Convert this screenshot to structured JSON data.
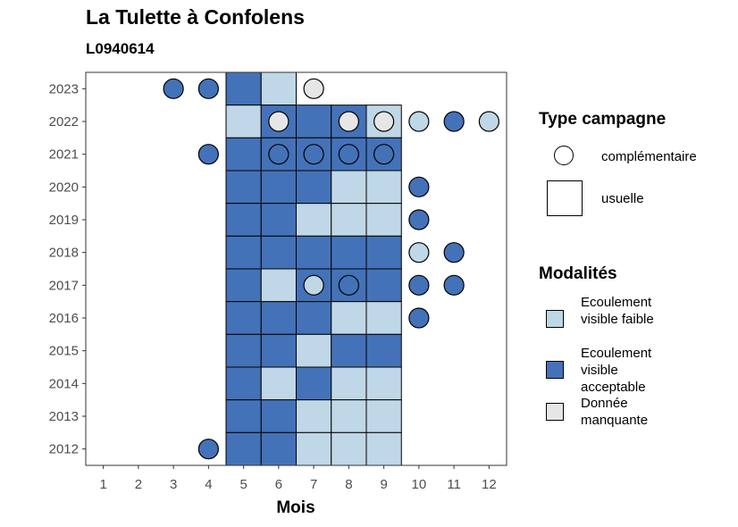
{
  "title": "La Tulette à Confolens",
  "subtitle": "L0940614",
  "chart_data": {
    "type": "heatmap",
    "xlabel": "Mois",
    "ylabel": "",
    "x_ticks": [
      1,
      2,
      3,
      4,
      5,
      6,
      7,
      8,
      9,
      10,
      11,
      12
    ],
    "y_ticks": [
      2012,
      2013,
      2014,
      2015,
      2016,
      2017,
      2018,
      2019,
      2020,
      2021,
      2022,
      2023
    ],
    "xlim": [
      0.5,
      12.5
    ],
    "ylim": [
      2011.5,
      2023.5
    ],
    "colors": {
      "Ecoulement visible faible": "#bfd7e6",
      "Ecoulement visible acceptable": "#4472b8",
      "Donnée manquante": "#e6e6e6"
    },
    "usuelle": [
      {
        "year": 2023,
        "month": 5,
        "value": "Ecoulement visible acceptable"
      },
      {
        "year": 2023,
        "month": 6,
        "value": "Ecoulement visible faible"
      },
      {
        "year": 2022,
        "month": 5,
        "value": "Ecoulement visible faible"
      },
      {
        "year": 2022,
        "month": 6,
        "value": "Ecoulement visible acceptable"
      },
      {
        "year": 2022,
        "month": 7,
        "value": "Ecoulement visible acceptable"
      },
      {
        "year": 2022,
        "month": 8,
        "value": "Ecoulement visible acceptable"
      },
      {
        "year": 2022,
        "month": 9,
        "value": "Ecoulement visible faible"
      },
      {
        "year": 2021,
        "month": 5,
        "value": "Ecoulement visible acceptable"
      },
      {
        "year": 2021,
        "month": 6,
        "value": "Ecoulement visible acceptable"
      },
      {
        "year": 2021,
        "month": 7,
        "value": "Ecoulement visible acceptable"
      },
      {
        "year": 2021,
        "month": 8,
        "value": "Ecoulement visible acceptable"
      },
      {
        "year": 2021,
        "month": 9,
        "value": "Ecoulement visible acceptable"
      },
      {
        "year": 2020,
        "month": 5,
        "value": "Ecoulement visible acceptable"
      },
      {
        "year": 2020,
        "month": 6,
        "value": "Ecoulement visible acceptable"
      },
      {
        "year": 2020,
        "month": 7,
        "value": "Ecoulement visible acceptable"
      },
      {
        "year": 2020,
        "month": 8,
        "value": "Ecoulement visible faible"
      },
      {
        "year": 2020,
        "month": 9,
        "value": "Ecoulement visible faible"
      },
      {
        "year": 2019,
        "month": 5,
        "value": "Ecoulement visible acceptable"
      },
      {
        "year": 2019,
        "month": 6,
        "value": "Ecoulement visible acceptable"
      },
      {
        "year": 2019,
        "month": 7,
        "value": "Ecoulement visible faible"
      },
      {
        "year": 2019,
        "month": 8,
        "value": "Ecoulement visible faible"
      },
      {
        "year": 2019,
        "month": 9,
        "value": "Ecoulement visible faible"
      },
      {
        "year": 2018,
        "month": 5,
        "value": "Ecoulement visible acceptable"
      },
      {
        "year": 2018,
        "month": 6,
        "value": "Ecoulement visible acceptable"
      },
      {
        "year": 2018,
        "month": 7,
        "value": "Ecoulement visible acceptable"
      },
      {
        "year": 2018,
        "month": 8,
        "value": "Ecoulement visible acceptable"
      },
      {
        "year": 2018,
        "month": 9,
        "value": "Ecoulement visible acceptable"
      },
      {
        "year": 2017,
        "month": 5,
        "value": "Ecoulement visible acceptable"
      },
      {
        "year": 2017,
        "month": 6,
        "value": "Ecoulement visible faible"
      },
      {
        "year": 2017,
        "month": 7,
        "value": "Ecoulement visible acceptable"
      },
      {
        "year": 2017,
        "month": 8,
        "value": "Ecoulement visible acceptable"
      },
      {
        "year": 2017,
        "month": 9,
        "value": "Ecoulement visible acceptable"
      },
      {
        "year": 2016,
        "month": 5,
        "value": "Ecoulement visible acceptable"
      },
      {
        "year": 2016,
        "month": 6,
        "value": "Ecoulement visible acceptable"
      },
      {
        "year": 2016,
        "month": 7,
        "value": "Ecoulement visible acceptable"
      },
      {
        "year": 2016,
        "month": 8,
        "value": "Ecoulement visible faible"
      },
      {
        "year": 2016,
        "month": 9,
        "value": "Ecoulement visible faible"
      },
      {
        "year": 2015,
        "month": 5,
        "value": "Ecoulement visible acceptable"
      },
      {
        "year": 2015,
        "month": 6,
        "value": "Ecoulement visible acceptable"
      },
      {
        "year": 2015,
        "month": 7,
        "value": "Ecoulement visible faible"
      },
      {
        "year": 2015,
        "month": 8,
        "value": "Ecoulement visible acceptable"
      },
      {
        "year": 2015,
        "month": 9,
        "value": "Ecoulement visible acceptable"
      },
      {
        "year": 2014,
        "month": 5,
        "value": "Ecoulement visible acceptable"
      },
      {
        "year": 2014,
        "month": 6,
        "value": "Ecoulement visible faible"
      },
      {
        "year": 2014,
        "month": 7,
        "value": "Ecoulement visible acceptable"
      },
      {
        "year": 2014,
        "month": 8,
        "value": "Ecoulement visible faible"
      },
      {
        "year": 2014,
        "month": 9,
        "value": "Ecoulement visible faible"
      },
      {
        "year": 2013,
        "month": 5,
        "value": "Ecoulement visible acceptable"
      },
      {
        "year": 2013,
        "month": 6,
        "value": "Ecoulement visible acceptable"
      },
      {
        "year": 2013,
        "month": 7,
        "value": "Ecoulement visible faible"
      },
      {
        "year": 2013,
        "month": 8,
        "value": "Ecoulement visible faible"
      },
      {
        "year": 2013,
        "month": 9,
        "value": "Ecoulement visible faible"
      },
      {
        "year": 2012,
        "month": 5,
        "value": "Ecoulement visible acceptable"
      },
      {
        "year": 2012,
        "month": 6,
        "value": "Ecoulement visible acceptable"
      },
      {
        "year": 2012,
        "month": 7,
        "value": "Ecoulement visible faible"
      },
      {
        "year": 2012,
        "month": 8,
        "value": "Ecoulement visible faible"
      },
      {
        "year": 2012,
        "month": 9,
        "value": "Ecoulement visible faible"
      }
    ],
    "complementaire": [
      {
        "year": 2023,
        "month": 3,
        "value": "Ecoulement visible acceptable"
      },
      {
        "year": 2023,
        "month": 4,
        "value": "Ecoulement visible acceptable"
      },
      {
        "year": 2023,
        "month": 7,
        "value": "Donnée manquante"
      },
      {
        "year": 2022,
        "month": 6,
        "value": "Donnée manquante"
      },
      {
        "year": 2022,
        "month": 8,
        "value": "Donnée manquante"
      },
      {
        "year": 2022,
        "month": 9,
        "value": "Donnée manquante"
      },
      {
        "year": 2022,
        "month": 10,
        "value": "Ecoulement visible faible"
      },
      {
        "year": 2022,
        "month": 11,
        "value": "Ecoulement visible acceptable"
      },
      {
        "year": 2022,
        "month": 12,
        "value": "Ecoulement visible faible"
      },
      {
        "year": 2021,
        "month": 4,
        "value": "Ecoulement visible acceptable"
      },
      {
        "year": 2021,
        "month": 6,
        "value": "Ecoulement visible acceptable"
      },
      {
        "year": 2021,
        "month": 7,
        "value": "Ecoulement visible acceptable"
      },
      {
        "year": 2021,
        "month": 8,
        "value": "Ecoulement visible acceptable"
      },
      {
        "year": 2021,
        "month": 9,
        "value": "Ecoulement visible acceptable"
      },
      {
        "year": 2020,
        "month": 10,
        "value": "Ecoulement visible acceptable"
      },
      {
        "year": 2019,
        "month": 10,
        "value": "Ecoulement visible acceptable"
      },
      {
        "year": 2018,
        "month": 10,
        "value": "Ecoulement visible faible"
      },
      {
        "year": 2018,
        "month": 11,
        "value": "Ecoulement visible acceptable"
      },
      {
        "year": 2017,
        "month": 7,
        "value": "Ecoulement visible faible"
      },
      {
        "year": 2017,
        "month": 8,
        "value": "Ecoulement visible acceptable"
      },
      {
        "year": 2017,
        "month": 10,
        "value": "Ecoulement visible acceptable"
      },
      {
        "year": 2017,
        "month": 11,
        "value": "Ecoulement visible acceptable"
      },
      {
        "year": 2016,
        "month": 10,
        "value": "Ecoulement visible acceptable"
      },
      {
        "year": 2012,
        "month": 4,
        "value": "Ecoulement visible acceptable"
      }
    ]
  },
  "legend": {
    "type_title": "Type campagne",
    "type_items": [
      "complémentaire",
      "usuelle"
    ],
    "mod_title": "Modalités",
    "mod_items": [
      {
        "label": "Ecoulement visible faible",
        "color": "#bfd7e6"
      },
      {
        "label": "Ecoulement visible acceptable",
        "color": "#4472b8"
      },
      {
        "label": "Donnée manquante",
        "color": "#e6e6e6"
      }
    ]
  }
}
